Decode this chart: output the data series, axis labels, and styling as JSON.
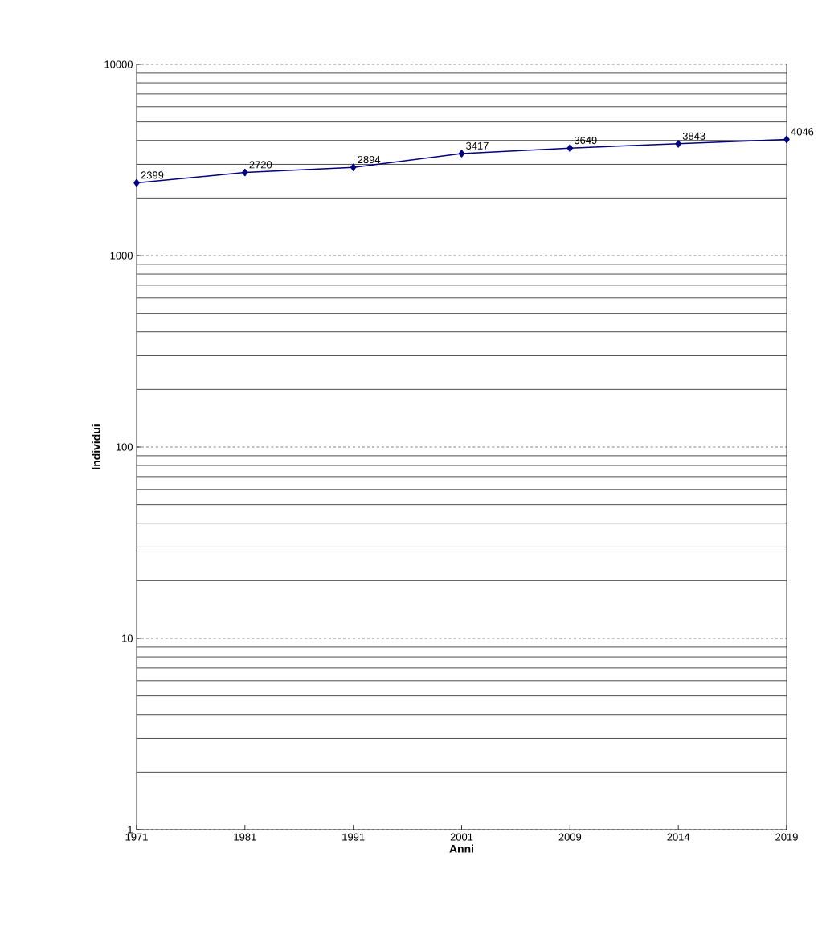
{
  "chart_data": {
    "type": "line",
    "xlabel": "Anni",
    "ylabel": "Individui",
    "categories": [
      "1971",
      "1981",
      "1991",
      "2001",
      "2009",
      "2014",
      "2019"
    ],
    "series": [
      {
        "color": "#000080",
        "values": [
          2399,
          2720,
          2894,
          3417,
          3649,
          3843,
          4046
        ]
      }
    ],
    "log": "y",
    "ylim": [
      1,
      10000
    ],
    "yticks": [
      1,
      10,
      100,
      1000,
      10000
    ],
    "grid": "y",
    "marker": "diamond",
    "line_style": "solid",
    "data_labels": true
  }
}
